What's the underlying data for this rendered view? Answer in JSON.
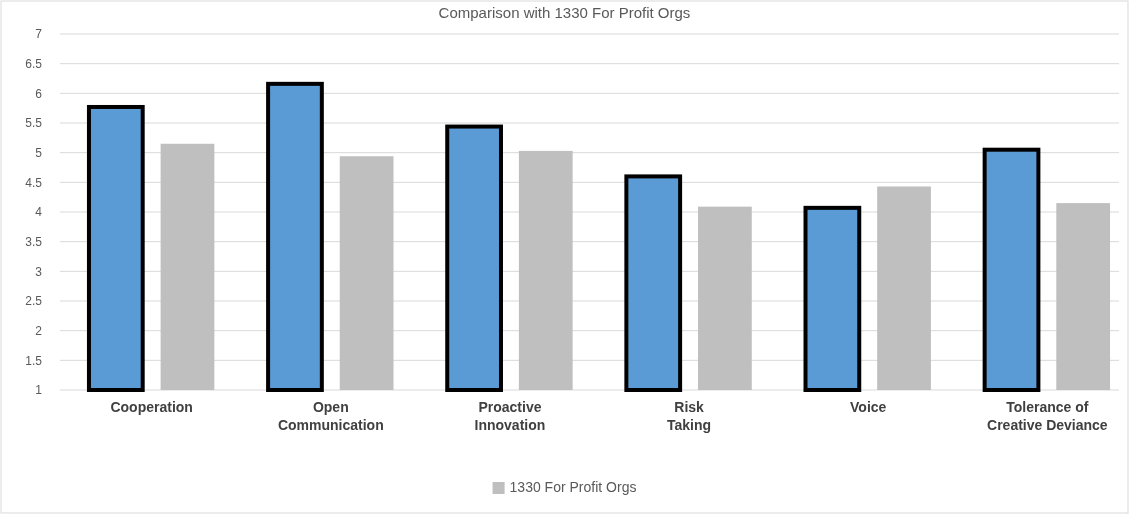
{
  "chart_data": {
    "type": "bar",
    "title": "Comparison with 1330 For Profit Orgs",
    "categories": [
      "Cooperation",
      "Open Communication",
      "Proactive Innovation",
      "Risk Taking",
      "Voice",
      "Tolerance of Creative Deviance"
    ],
    "series": [
      {
        "color": "#5b9bd5",
        "values": [
          5.77,
          6.16,
          5.44,
          4.6,
          4.07,
          5.05
        ]
      },
      {
        "name": "1330 For Profit Orgs",
        "color": "#bfbfbf",
        "values": [
          5.15,
          4.94,
          5.03,
          4.09,
          4.43,
          4.15
        ]
      }
    ],
    "ylim": [
      1,
      7
    ],
    "yticks": [
      1,
      1.5,
      2,
      2.5,
      3,
      3.5,
      4,
      4.5,
      5,
      5.5,
      6,
      6.5,
      7
    ],
    "grid": "y",
    "legend": "bottom"
  }
}
